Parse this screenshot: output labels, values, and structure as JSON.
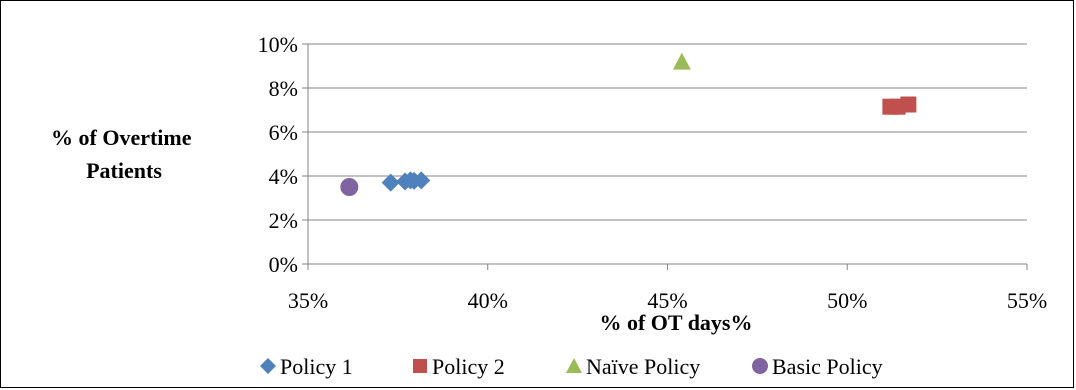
{
  "chart_data": {
    "type": "scatter",
    "xlabel": "% of OT days%",
    "ylabel_lines": [
      "% of Overtime",
      "Patients"
    ],
    "xlim": [
      35,
      55
    ],
    "ylim": [
      0,
      10
    ],
    "x_ticks": [
      35,
      40,
      45,
      50,
      55
    ],
    "y_ticks": [
      0,
      2,
      4,
      6,
      8,
      10
    ],
    "tick_suffix": "%",
    "grid": "horizontal",
    "legend_position": "bottom",
    "series": [
      {
        "name": "Policy 1",
        "marker": "diamond",
        "color": "#4F81BD",
        "points": [
          {
            "x": 37.3,
            "y": 3.7
          },
          {
            "x": 37.7,
            "y": 3.75
          },
          {
            "x": 37.85,
            "y": 3.8
          },
          {
            "x": 37.95,
            "y": 3.78
          },
          {
            "x": 38.15,
            "y": 3.8
          }
        ]
      },
      {
        "name": "Policy 2",
        "marker": "square",
        "color": "#C0504D",
        "points": [
          {
            "x": 51.2,
            "y": 7.15
          },
          {
            "x": 51.4,
            "y": 7.15
          },
          {
            "x": 51.7,
            "y": 7.25
          }
        ]
      },
      {
        "name": "Naïve Policy",
        "marker": "triangle",
        "color": "#9BBB59",
        "points": [
          {
            "x": 45.4,
            "y": 9.2
          }
        ]
      },
      {
        "name": "Basic Policy",
        "marker": "circle",
        "color": "#8064A2",
        "points": [
          {
            "x": 36.15,
            "y": 3.5
          }
        ]
      }
    ]
  }
}
